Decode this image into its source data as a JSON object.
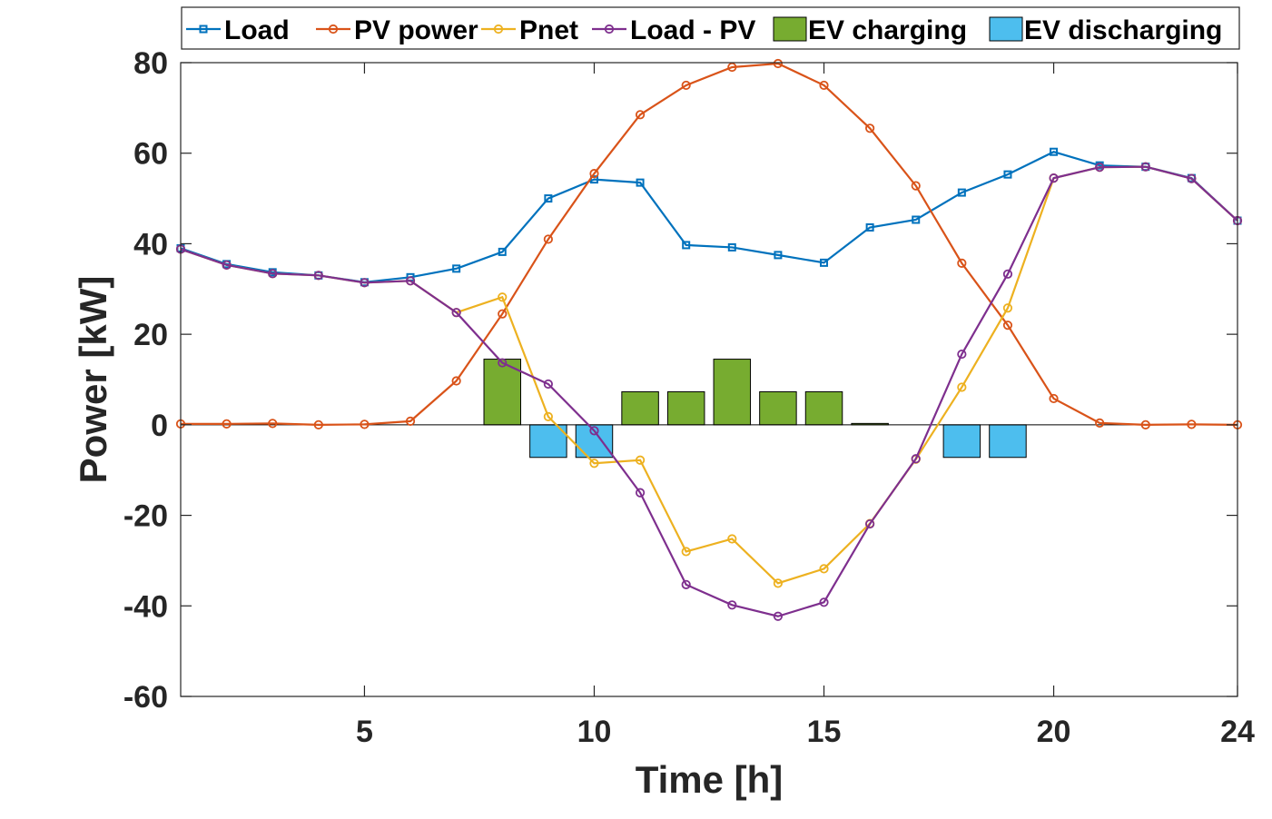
{
  "chart_data": {
    "type": "line",
    "xlabel": "Time [h]",
    "ylabel": "Power [kW]",
    "xlim": [
      1,
      24
    ],
    "ylim": [
      -60,
      80
    ],
    "xticks": [
      5,
      10,
      15,
      20,
      24
    ],
    "yticks": [
      -60,
      -40,
      -20,
      0,
      20,
      40,
      60,
      80
    ],
    "xtick_labels": [
      "5",
      "10",
      "15",
      "20",
      "24"
    ],
    "ytick_labels": [
      "-60",
      "-40",
      "-20",
      "0",
      "20",
      "40",
      "60",
      "80"
    ],
    "grid": false,
    "legend_position": "top",
    "x": [
      1,
      2,
      3,
      4,
      5,
      6,
      7,
      8,
      9,
      10,
      11,
      12,
      13,
      14,
      15,
      16,
      17,
      18,
      19,
      20,
      21,
      22,
      23,
      24
    ],
    "series": [
      {
        "name": "Load",
        "kind": "line",
        "marker": "square",
        "color": "#0072BD",
        "values": [
          39,
          35.5,
          33.7,
          33,
          31.5,
          32.6,
          34.5,
          38.2,
          50,
          54.2,
          53.5,
          39.7,
          39.2,
          37.5,
          35.8,
          43.6,
          45.3,
          51.3,
          55.3,
          60.3,
          57.3,
          57,
          54.5,
          45.1
        ]
      },
      {
        "name": "PV power",
        "kind": "line",
        "marker": "circle",
        "color": "#D95319",
        "values": [
          0.2,
          0.2,
          0.3,
          0,
          0.1,
          0.8,
          9.7,
          24.5,
          41,
          55.5,
          68.5,
          75,
          79,
          79.8,
          75,
          65.5,
          52.8,
          35.7,
          22,
          5.8,
          0.4,
          0,
          0.1,
          0
        ]
      },
      {
        "name": "Pnet",
        "kind": "line",
        "marker": "circle",
        "color": "#EDB120",
        "values": [
          38.8,
          35.3,
          33.4,
          33,
          31.4,
          31.8,
          24.8,
          28.2,
          1.8,
          -8.5,
          -7.8,
          -28,
          -25.2,
          -35,
          -31.8,
          -21.8,
          -7.6,
          8.3,
          25.8,
          54.5,
          56.9,
          57,
          54.4,
          45.1
        ]
      },
      {
        "name": "Load - PV",
        "kind": "line",
        "marker": "circle",
        "color": "#7E2F8E",
        "values": [
          38.8,
          35.3,
          33.4,
          33,
          31.4,
          31.8,
          24.8,
          13.7,
          9,
          -1.3,
          -15,
          -35.3,
          -39.8,
          -42.3,
          -39.2,
          -21.9,
          -7.5,
          15.6,
          33.3,
          54.5,
          56.9,
          57,
          54.4,
          45.1
        ]
      },
      {
        "name": "EV charging",
        "kind": "bar",
        "color": "#77AC30",
        "values": [
          0,
          0,
          0,
          0,
          0,
          0,
          0,
          14.5,
          0,
          0,
          7.3,
          7.3,
          14.5,
          7.3,
          7.3,
          0.3,
          0,
          0,
          0,
          0,
          0,
          0,
          0,
          0
        ]
      },
      {
        "name": "EV discharging",
        "kind": "bar",
        "color": "#4DBEEE",
        "values": [
          0,
          0,
          0,
          0,
          0,
          0,
          0,
          0,
          -7.2,
          -7.2,
          0,
          0,
          0,
          0,
          0,
          0,
          0,
          -7.2,
          -7.2,
          0,
          0,
          0,
          0,
          0
        ]
      }
    ]
  }
}
